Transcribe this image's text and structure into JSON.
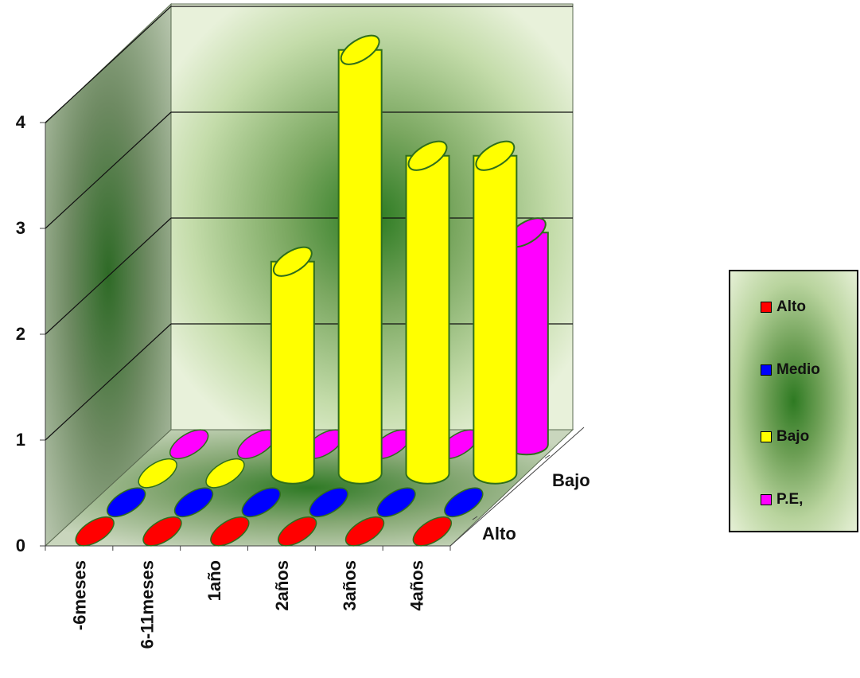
{
  "chart_data": {
    "type": "bar",
    "title": "",
    "xlabel": "",
    "ylabel": "",
    "ylim": [
      0,
      4
    ],
    "y_ticks": [
      "0",
      "1",
      "2",
      "3",
      "4"
    ],
    "categories": [
      "-6meses",
      "6-11meses",
      "1año",
      "2años",
      "3años",
      "4años"
    ],
    "depth_labels": [
      "Alto",
      "Bajo"
    ],
    "series": [
      {
        "name": "Alto",
        "color": "#ff0000",
        "values": [
          0,
          0,
          0,
          0,
          0,
          0
        ]
      },
      {
        "name": "Medio",
        "color": "#0000ff",
        "values": [
          0,
          0,
          0,
          0,
          0,
          0
        ]
      },
      {
        "name": "Bajo",
        "color": "#ffff00",
        "values": [
          0,
          0,
          2,
          4,
          3,
          3
        ]
      },
      {
        "name": "P.E,",
        "color": "#ff00ff",
        "values": [
          0,
          0,
          0,
          0,
          0,
          2
        ]
      }
    ],
    "legend_position": "right",
    "grid": true
  }
}
